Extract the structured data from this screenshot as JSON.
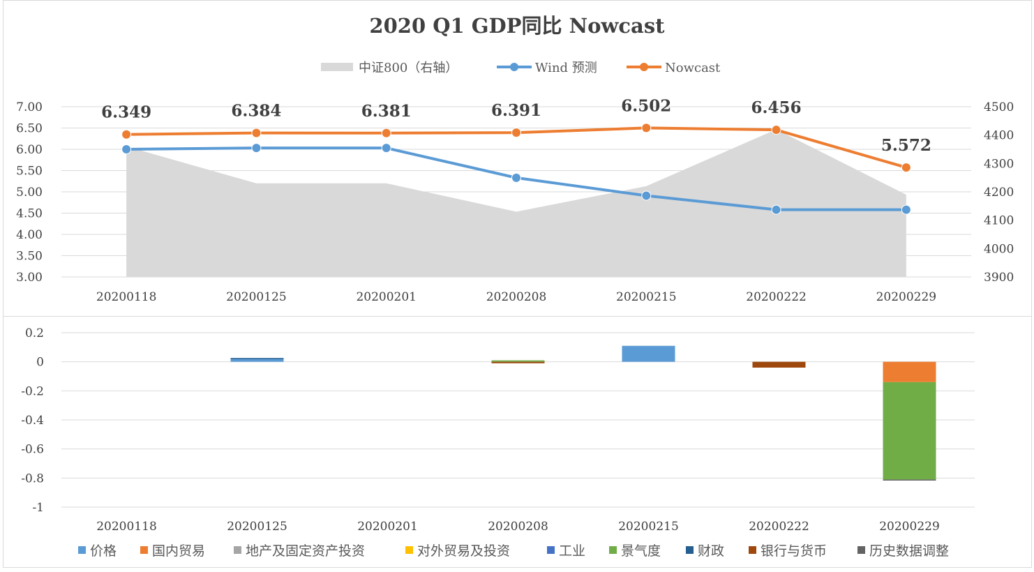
{
  "chart_data": [
    {
      "type": "line",
      "title": "2020 Q1 GDP同比 Nowcast",
      "categories": [
        "20200118",
        "20200125",
        "20200201",
        "20200208",
        "20200215",
        "20200222",
        "20200229"
      ],
      "legend": [
        "中证800（右轴）",
        "Wind 预测",
        "Nowcast"
      ],
      "legend_position": "top",
      "y_left_ticks": [
        "7.00",
        "6.50",
        "6.00",
        "5.50",
        "5.00",
        "4.50",
        "4.00",
        "3.50",
        "3.00"
      ],
      "y_right_ticks": [
        "4500",
        "4400",
        "4300",
        "4200",
        "4100",
        "4000",
        "3900"
      ],
      "ylim_left": [
        3.0,
        7.0
      ],
      "ylim_right": [
        3900,
        4500
      ],
      "series": [
        {
          "name": "中证800（右轴）",
          "type": "area",
          "axis": "right",
          "color": "#d9d9d9",
          "values": [
            4360,
            4230,
            4230,
            4130,
            4220,
            4420,
            4190
          ]
        },
        {
          "name": "Wind 预测",
          "type": "line",
          "axis": "left",
          "color": "#5b9bd5",
          "values": [
            6.0,
            6.03,
            6.03,
            5.33,
            4.91,
            4.58,
            4.58
          ]
        },
        {
          "name": "Nowcast",
          "type": "line",
          "axis": "left",
          "color": "#ed7d31",
          "values": [
            6.349,
            6.384,
            6.381,
            6.391,
            6.502,
            6.456,
            5.572
          ],
          "labels": [
            "6.349",
            "6.384",
            "6.381",
            "6.391",
            "6.502",
            "6.456",
            "5.572"
          ]
        }
      ],
      "grid": true
    },
    {
      "type": "bar",
      "stacked": true,
      "categories": [
        "20200118",
        "20200125",
        "20200201",
        "20200208",
        "20200215",
        "20200222",
        "20200229"
      ],
      "y_ticks": [
        "0.2",
        "0",
        "-0.2",
        "-0.4",
        "-0.6",
        "-0.8",
        "-1"
      ],
      "ylim": [
        -1.0,
        0.2
      ],
      "legend_position": "bottom",
      "grid": true,
      "series": [
        {
          "name": "价格",
          "color": "#5b9bd5",
          "values": [
            0,
            0.02,
            0,
            0,
            0.11,
            0,
            0
          ]
        },
        {
          "name": "国内贸易",
          "color": "#ed7d31",
          "values": [
            0,
            0,
            0,
            0,
            0,
            0,
            -0.14
          ]
        },
        {
          "name": "地产及固定资产投资",
          "color": "#a5a5a5",
          "values": [
            0,
            0,
            0,
            0,
            0,
            0,
            0
          ]
        },
        {
          "name": "对外贸易及投资",
          "color": "#ffc000",
          "values": [
            0,
            0,
            0,
            0,
            0,
            0,
            0
          ]
        },
        {
          "name": "工业",
          "color": "#4472c4",
          "values": [
            0,
            0,
            0,
            0,
            0,
            0,
            0
          ]
        },
        {
          "name": "景气度",
          "color": "#70ad47",
          "values": [
            0,
            0,
            0,
            0.01,
            0,
            0,
            -0.67
          ]
        },
        {
          "name": "财政",
          "color": "#255e91",
          "values": [
            0,
            0.006,
            0,
            0,
            0,
            0,
            0
          ]
        },
        {
          "name": "银行与货币",
          "color": "#9e480e",
          "values": [
            0,
            0,
            0,
            -0.01,
            0,
            -0.04,
            0
          ]
        },
        {
          "name": "历史数据调整",
          "color": "#636363",
          "values": [
            0,
            0,
            0,
            0,
            0,
            0,
            -0.005
          ]
        }
      ]
    }
  ]
}
